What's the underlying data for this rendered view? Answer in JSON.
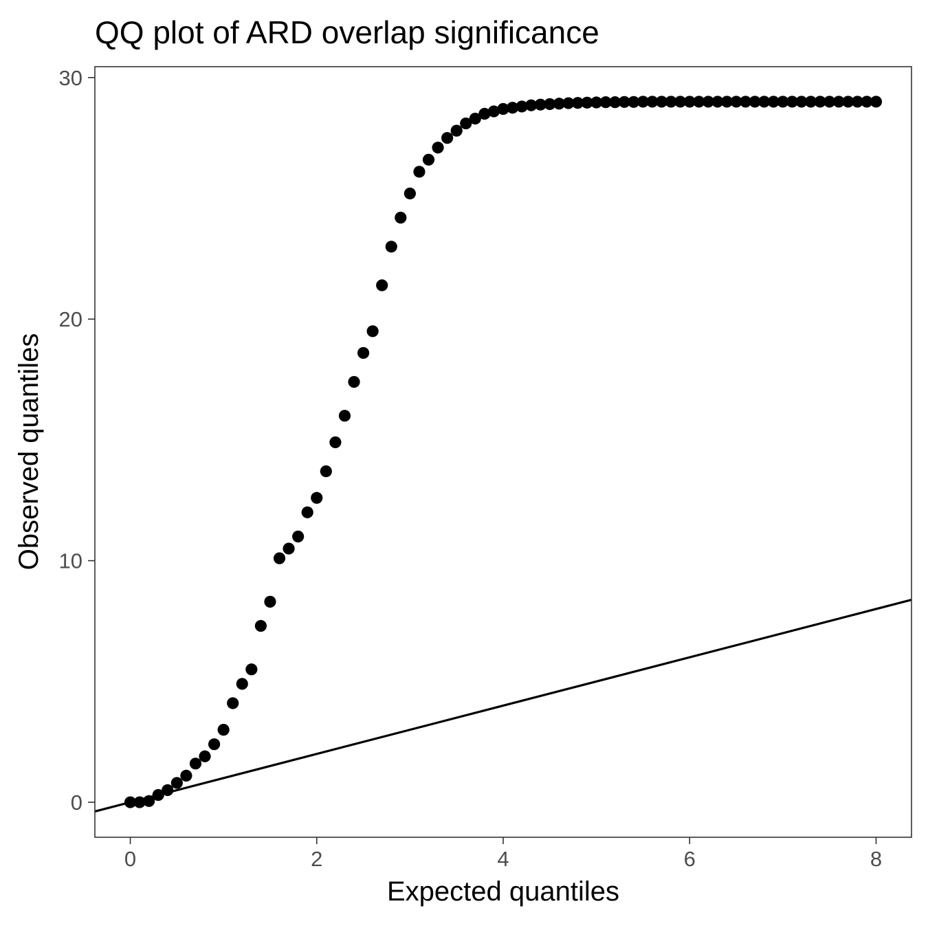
{
  "chart_data": {
    "type": "scatter",
    "title": "QQ plot of ARD overlap significance",
    "xlabel": "Expected quantiles",
    "ylabel": "Observed quantiles",
    "xlim": [
      -0.38,
      8.38
    ],
    "ylim": [
      -1.45,
      30.45
    ],
    "x_ticks": [
      0,
      2,
      4,
      6,
      8
    ],
    "y_ticks": [
      0,
      10,
      20,
      30
    ],
    "x_tick_labels": [
      "0",
      "2",
      "4",
      "6",
      "8"
    ],
    "y_tick_labels": [
      "0",
      "10",
      "20",
      "30"
    ],
    "grid": false,
    "legend": "none",
    "reference_line": {
      "slope": 1,
      "intercept": 0
    },
    "point_color": "#000000",
    "line_color": "#000000",
    "x": [
      0,
      0.1,
      0.2,
      0.3,
      0.4,
      0.5,
      0.6,
      0.7,
      0.8,
      0.9,
      1.0,
      1.1,
      1.2,
      1.3,
      1.4,
      1.5,
      1.6,
      1.7,
      1.8,
      1.9,
      2.0,
      2.1,
      2.2,
      2.3,
      2.4,
      2.5,
      2.6,
      2.7,
      2.8,
      2.9,
      3.0,
      3.1,
      3.2,
      3.3,
      3.4,
      3.5,
      3.6,
      3.7,
      3.8,
      3.9,
      4.0,
      4.1,
      4.2,
      4.3,
      4.4,
      4.5,
      4.6,
      4.7,
      4.8,
      4.9,
      5.0,
      5.1,
      5.2,
      5.3,
      5.4,
      5.5,
      5.6,
      5.7,
      5.8,
      5.9,
      6.0,
      6.1,
      6.2,
      6.3,
      6.4,
      6.5,
      6.6,
      6.7,
      6.8,
      6.9,
      7.0,
      7.1,
      7.2,
      7.3,
      7.4,
      7.5,
      7.6,
      7.7,
      7.8,
      7.9,
      8.0
    ],
    "y": [
      0,
      0,
      0.05,
      0.3,
      0.5,
      0.8,
      1.1,
      1.6,
      1.9,
      2.4,
      3.0,
      4.1,
      4.9,
      5.5,
      7.3,
      8.3,
      10.1,
      10.5,
      11.0,
      12.0,
      12.6,
      13.7,
      14.9,
      16.0,
      17.4,
      18.6,
      19.5,
      21.4,
      23.0,
      24.2,
      25.2,
      26.1,
      26.6,
      27.1,
      27.5,
      27.8,
      28.1,
      28.3,
      28.5,
      28.6,
      28.7,
      28.75,
      28.8,
      28.85,
      28.88,
      28.9,
      28.92,
      28.94,
      28.95,
      28.96,
      28.97,
      28.98,
      28.98,
      28.99,
      28.99,
      29.0,
      29.0,
      29.0,
      29.0,
      29.0,
      29.0,
      29.0,
      29.0,
      29.0,
      29.0,
      29.0,
      29.0,
      29.0,
      29.0,
      29.0,
      29.0,
      29.0,
      29.0,
      29.0,
      29.0,
      29.0,
      29.0,
      29.0,
      29.0,
      29.0,
      29.0
    ]
  }
}
